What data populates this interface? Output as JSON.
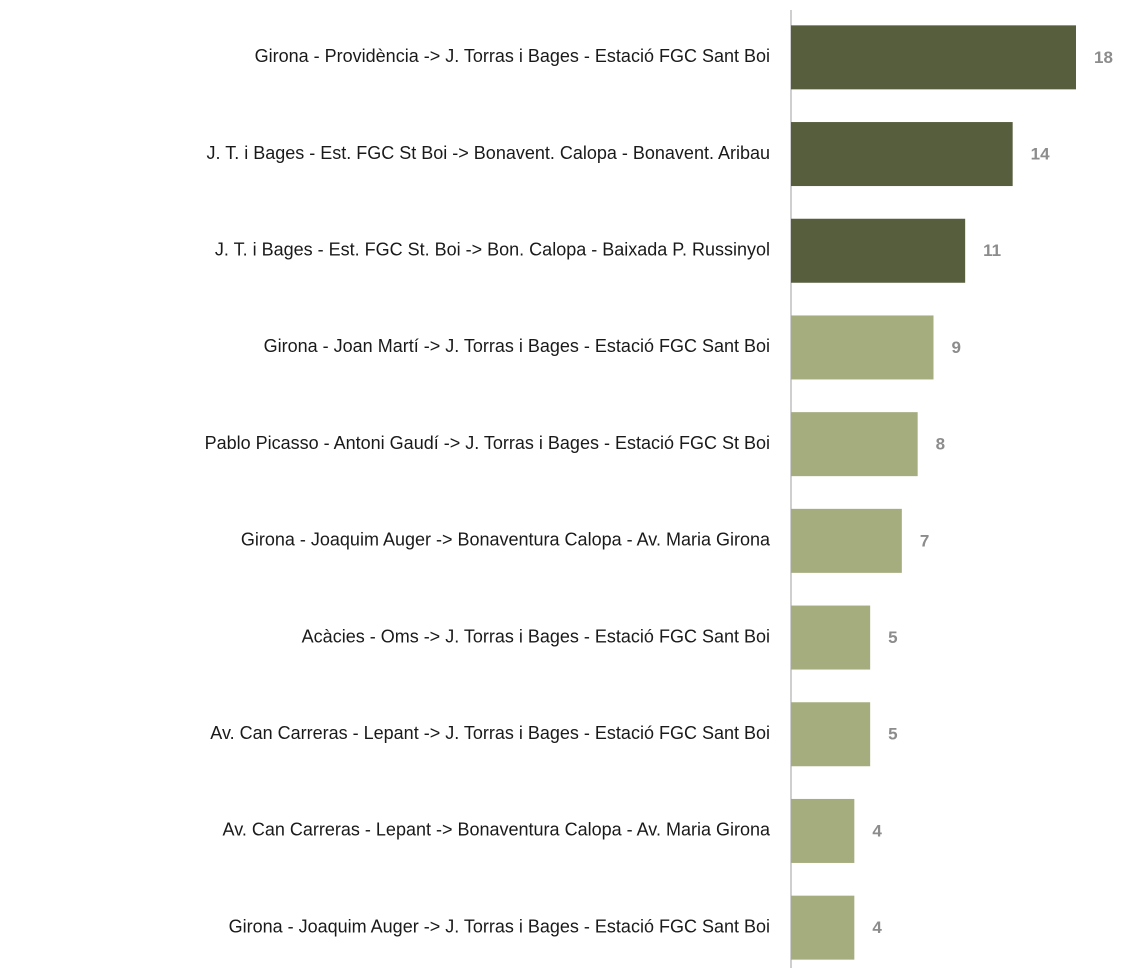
{
  "chart_data": {
    "type": "bar",
    "orientation": "horizontal",
    "categories": [
      "Girona - Providència -> J. Torras i Bages - Estació FGC Sant Boi",
      "J. T. i Bages - Est. FGC St Boi -> Bonavent. Calopa - Bonavent. Aribau",
      "J. T. i Bages - Est. FGC St. Boi -> Bon. Calopa - Baixada P. Russinyol",
      "Girona - Joan Martí -> J. Torras i Bages - Estació FGC Sant Boi",
      "Pablo Picasso - Antoni Gaudí -> J. Torras i Bages - Estació FGC St Boi",
      "Girona - Joaquim Auger -> Bonaventura Calopa - Av. Maria Girona",
      "Acàcies - Oms -> J. Torras i Bages - Estació FGC Sant Boi",
      "Av. Can Carreras - Lepant -> J. Torras i Bages - Estació FGC Sant Boi",
      "Av. Can Carreras - Lepant -> Bonaventura Calopa - Av. Maria Girona",
      "Girona - Joaquim Auger -> J. Torras i Bages - Estació FGC Sant Boi"
    ],
    "values": [
      18,
      14,
      11,
      9,
      8,
      7,
      5,
      5,
      4,
      4
    ],
    "colors": [
      "#565e3e",
      "#565e3e",
      "#565e3e",
      "#a5ad7f",
      "#a5ad7f",
      "#a5ad7f",
      "#a5ad7f",
      "#a5ad7f",
      "#a5ad7f",
      "#a5ad7f"
    ]
  }
}
